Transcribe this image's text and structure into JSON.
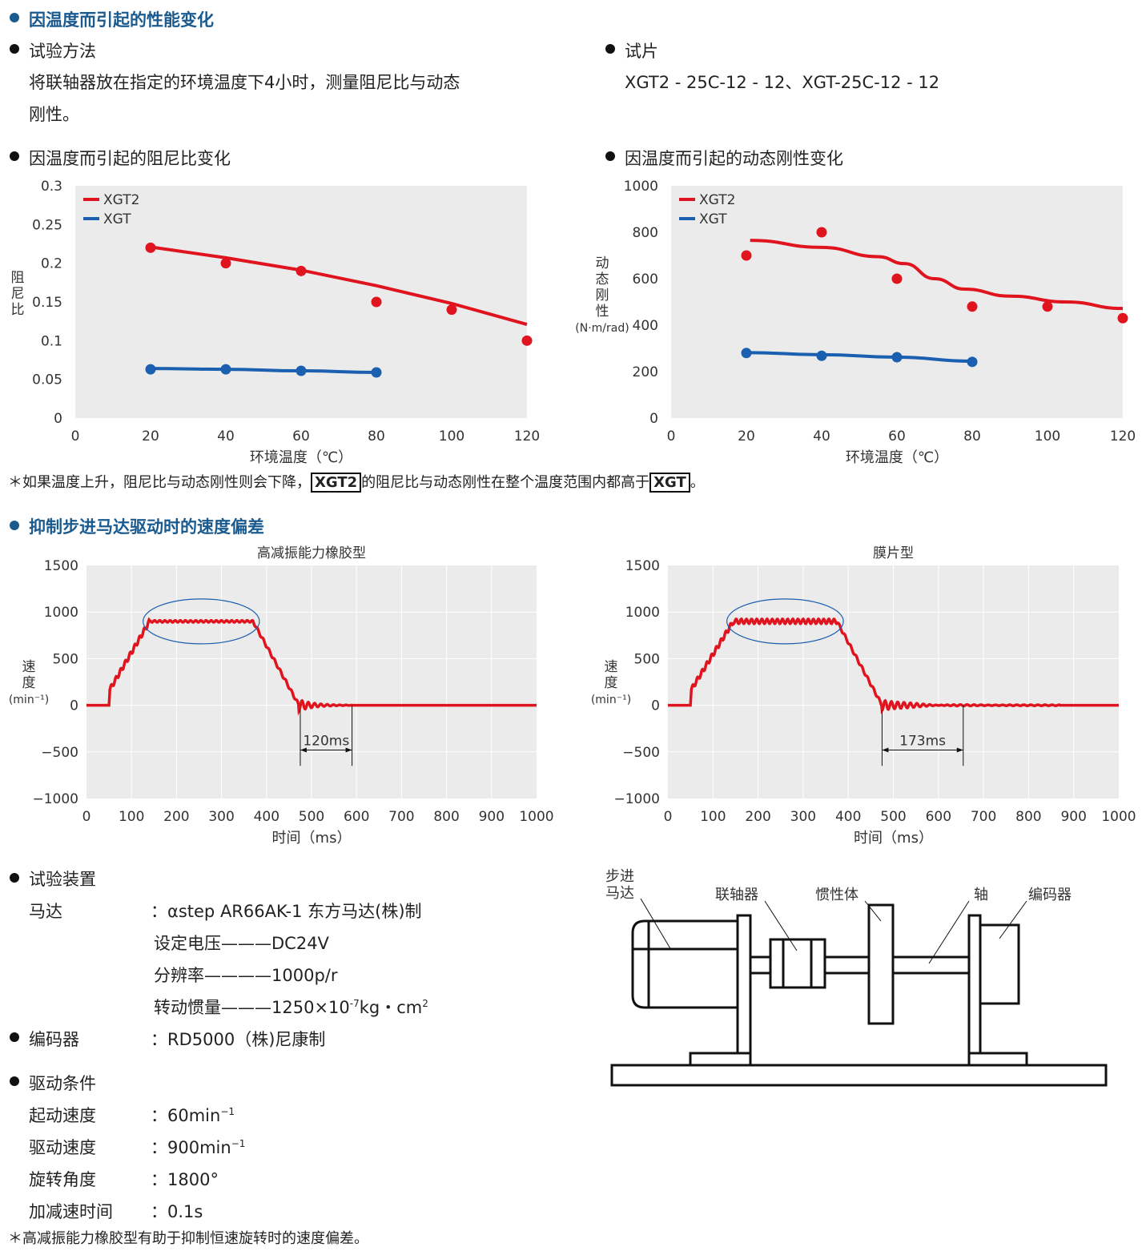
{
  "section1": {
    "title": "因温度而引起的性能变化",
    "method_label": "试验方法",
    "method_text1": "将联轴器放在指定的环境温度下4小时，测量阻尼比与动态",
    "method_text2": "刚性。",
    "sample_label": "试片",
    "sample_text": "XGT2 - 25C-12 - 12、XGT-25C-12 - 12",
    "chart1_label": "因温度而引起的阻尼比变化",
    "chart2_label": "因温度而引起的动态刚性变化",
    "note_a": "＊如果温度上升，阻尼比与动态刚性则会下降，",
    "note_b": "XGT2",
    "note_c": "的阻尼比与动态刚性在整个温度范围内都高于",
    "note_d": "XGT",
    "note_e": "。"
  },
  "section2": {
    "title": "抑制步进马达驱动时的速度偏差"
  },
  "test": {
    "device_label": "试验装置",
    "motor_label": "马达",
    "motor_value": "：αstep AR66AK-1 东方马达(株)制",
    "voltage": "设定电压———DC24V",
    "resolution": "分辨率————1000p/r",
    "inertia": "转动惯量———1250×10",
    "inertia_exp": "-7",
    "inertia_unit": "kg・cm",
    "inertia_unit_exp": "2",
    "encoder_label": "编码器",
    "encoder_value": "：RD5000（株)尼康制",
    "drive_label": "驱动条件",
    "conditions": [
      {
        "k": "起动速度",
        "v": "：60min",
        "e": "−1"
      },
      {
        "k": "驱动速度",
        "v": "：900min",
        "e": "−1"
      },
      {
        "k": "旋转角度",
        "v": "：1800°",
        "e": ""
      },
      {
        "k": "加减速时间",
        "v": "：0.1s",
        "e": ""
      }
    ],
    "footnote": "＊高减振能力橡胶型有助于抑制恒速旋转时的速度偏差。"
  },
  "diagram": {
    "motor": [
      "步进",
      "马达"
    ],
    "coupling": "联轴器",
    "inertia": "惯性体",
    "shaft": "轴",
    "encoder": "编码器"
  },
  "colors": {
    "xgt2": "#e0141e",
    "xgt": "#1a5fb0",
    "plot_bg": "#ebebeb"
  },
  "chart_data": [
    {
      "type": "line",
      "title": "",
      "xlabel": "环境温度（℃）",
      "ylabel": [
        "阻",
        "尼",
        "比"
      ],
      "xlim": [
        0,
        120
      ],
      "ylim": [
        0,
        0.3
      ],
      "xticks": [
        "0",
        "20",
        "40",
        "60",
        "80",
        "100",
        "120"
      ],
      "yticks": [
        "0",
        "0.05",
        "0.1",
        "0.15",
        "0.2",
        "0.25",
        "0.3"
      ],
      "legend": "top-left",
      "series": [
        {
          "name": "XGT2",
          "points": [
            [
              20,
              0.22
            ],
            [
              40,
              0.2
            ],
            [
              60,
              0.19
            ],
            [
              80,
              0.15
            ],
            [
              100,
              0.14
            ],
            [
              120,
              0.1
            ]
          ],
          "fit": [
            [
              20,
              0.221
            ],
            [
              40,
              0.207
            ],
            [
              60,
              0.191
            ],
            [
              80,
              0.171
            ],
            [
              100,
              0.148
            ],
            [
              120,
              0.121
            ]
          ]
        },
        {
          "name": "XGT",
          "points": [
            [
              20,
              0.063
            ],
            [
              40,
              0.063
            ],
            [
              60,
              0.061
            ],
            [
              80,
              0.059
            ]
          ],
          "fit": [
            [
              20,
              0.064
            ],
            [
              40,
              0.063
            ],
            [
              60,
              0.061
            ],
            [
              80,
              0.059
            ]
          ]
        }
      ]
    },
    {
      "type": "line",
      "title": "",
      "xlabel": "环境温度（℃）",
      "ylabel": [
        "动",
        "态",
        "刚",
        "性",
        "(N·m/rad)"
      ],
      "xlim": [
        0,
        120
      ],
      "ylim": [
        0,
        1000
      ],
      "xticks": [
        "0",
        "20",
        "40",
        "60",
        "80",
        "100",
        "120"
      ],
      "yticks": [
        "0",
        "200",
        "400",
        "600",
        "800",
        "1000"
      ],
      "legend": "top-left",
      "series": [
        {
          "name": "XGT2",
          "points": [
            [
              20,
              700
            ],
            [
              40,
              800
            ],
            [
              60,
              600
            ],
            [
              80,
              480
            ],
            [
              100,
              480
            ],
            [
              120,
              430
            ]
          ],
          "fit": [
            [
              21,
              765
            ],
            [
              40,
              735
            ],
            [
              55,
              695
            ],
            [
              62,
              665
            ],
            [
              70,
              600
            ],
            [
              78,
              555
            ],
            [
              90,
              525
            ],
            [
              105,
              500
            ],
            [
              120,
              472
            ]
          ]
        },
        {
          "name": "XGT",
          "points": [
            [
              20,
              280
            ],
            [
              40,
              268
            ],
            [
              60,
              262
            ],
            [
              80,
              242
            ]
          ],
          "fit": [
            [
              20,
              282
            ],
            [
              40,
              273
            ],
            [
              60,
              262
            ],
            [
              80,
              245
            ]
          ]
        }
      ]
    },
    {
      "type": "line",
      "title": "高减振能力橡胶型",
      "xlabel": "时间（ms）",
      "ylabel": [
        "速",
        "度",
        "(min⁻¹)"
      ],
      "xlim": [
        0,
        1000
      ],
      "ylim": [
        -1000,
        1500
      ],
      "xticks": [
        "0",
        "100",
        "200",
        "300",
        "400",
        "500",
        "600",
        "700",
        "800",
        "900",
        "1000"
      ],
      "yticks": [
        "−1000",
        "−500",
        "0",
        "500",
        "1000",
        "1500"
      ],
      "annotation": "120ms",
      "settle": [
        475,
        590
      ],
      "plateau_ripple": 10,
      "settle_end": 590,
      "series": [
        {
          "name": "速度",
          "profile": [
            [
              0,
              0
            ],
            [
              50,
              0
            ],
            [
              52,
              170
            ],
            [
              140,
              900
            ],
            [
              370,
              900
            ],
            [
              472,
              0
            ],
            [
              1000,
              0
            ]
          ]
        }
      ]
    },
    {
      "type": "line",
      "title": "膜片型",
      "xlabel": "时间（ms）",
      "ylabel": [
        "速",
        "度",
        "(min⁻¹)"
      ],
      "xlim": [
        0,
        1000
      ],
      "ylim": [
        -1000,
        1500
      ],
      "xticks": [
        "0",
        "100",
        "200",
        "300",
        "400",
        "500",
        "600",
        "700",
        "800",
        "900",
        "1000"
      ],
      "yticks": [
        "−1000",
        "−500",
        "0",
        "500",
        "1000",
        "1500"
      ],
      "annotation": "173ms",
      "settle": [
        475,
        655
      ],
      "plateau_ripple": 25,
      "settle_end": 870,
      "series": [
        {
          "name": "速度",
          "profile": [
            [
              0,
              0
            ],
            [
              50,
              0
            ],
            [
              52,
              170
            ],
            [
              145,
              900
            ],
            [
              375,
              900
            ],
            [
              475,
              0
            ],
            [
              1000,
              0
            ]
          ]
        }
      ]
    }
  ]
}
